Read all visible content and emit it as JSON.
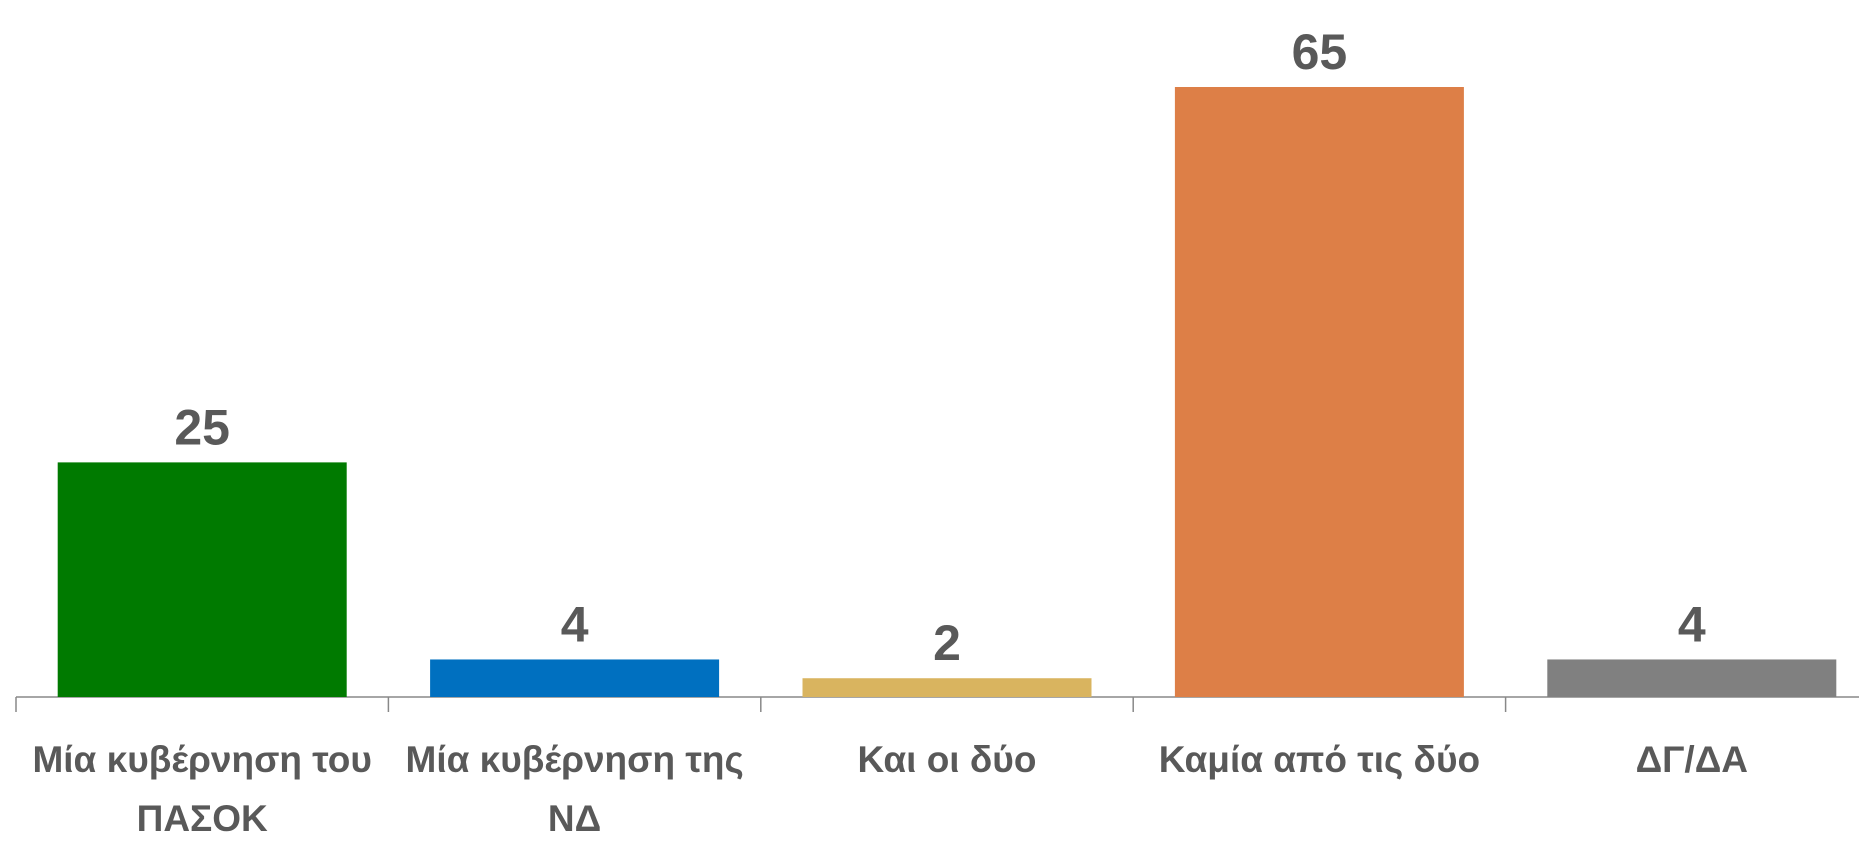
{
  "chart_data": {
    "type": "bar",
    "categories": [
      "Μία κυβέρνηση του ΠΑΣΟΚ",
      "Μία κυβέρνηση της ΝΔ",
      "Και οι δύο",
      "Καμία από τις δύο",
      "ΔΓ/ΔΑ"
    ],
    "values": [
      25,
      4,
      2,
      65,
      4
    ],
    "colors": [
      "#007a00",
      "#0070c0",
      "#d9b45f",
      "#dd7f47",
      "#808080"
    ],
    "grid": false
  }
}
